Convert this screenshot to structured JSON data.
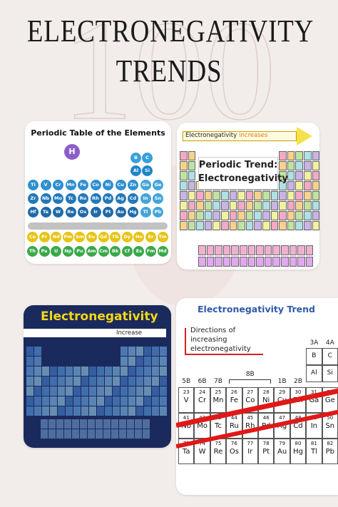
{
  "header": {
    "title_line1": "ELECTRONEGATIVITY",
    "title_line2": "TRENDS",
    "background_number": "100"
  },
  "cards": [
    {
      "title": "Periodic Table of the Elements",
      "key_symbol": "H",
      "right_block": [
        [
          "B",
          "C"
        ],
        [
          "Al",
          "Si"
        ]
      ],
      "rows": [
        [
          "Ti",
          "V",
          "Cr",
          "Mn",
          "Fe",
          "Co",
          "Ni",
          "Cu",
          "Zn",
          "Ga",
          "Ge"
        ],
        [
          "Zr",
          "Nb",
          "Mo",
          "Tc",
          "Ru",
          "Rh",
          "Pd",
          "Ag",
          "Cd",
          "In",
          "Sn"
        ],
        [
          "Hf",
          "Ta",
          "W",
          "Re",
          "Os",
          "Ir",
          "Pt",
          "Au",
          "Hg",
          "Tl",
          "Pb"
        ]
      ],
      "f_rows": [
        [
          "Ce",
          "Pr",
          "Nd",
          "Pm",
          "Sm",
          "Eu",
          "Gd",
          "Tb",
          "Dy",
          "Ho",
          "Er",
          "Tm"
        ],
        [
          "Th",
          "Pa",
          "U",
          "Np",
          "Pu",
          "Am",
          "Cm",
          "Bk",
          "Cf",
          "Es",
          "Fm",
          "Md"
        ]
      ]
    },
    {
      "arrow_label": "Electronegativity",
      "arrow_label_highlight": "increases",
      "title_line1": "Periodic Trend:",
      "title_line2": "Electronegativity"
    },
    {
      "title": "Electronegativity",
      "bar_label": "Increase"
    },
    {
      "title": "Electronegativity Trend",
      "note_lines": [
        "Directions of",
        "increasing",
        "electronegativity"
      ],
      "bracket_label": "8B",
      "groups": [
        "5B",
        "6B",
        "7B",
        "1B",
        "2B",
        "3A",
        "4A"
      ],
      "right_block": [
        [
          "B",
          "C"
        ],
        [
          "Al",
          "Si"
        ]
      ],
      "rows": [
        {
          "numbers": [
            "23",
            "24",
            "25",
            "26",
            "27",
            "28",
            "29",
            "30",
            "31",
            "32"
          ],
          "symbols": [
            "V",
            "Cr",
            "Mn",
            "Fe",
            "Co",
            "Ni",
            "Cu",
            "Zn",
            "Ga",
            "Ge"
          ]
        },
        {
          "numbers": [
            "41",
            "42",
            "43",
            "44",
            "45",
            "46",
            "47",
            "48",
            "49",
            "50"
          ],
          "symbols": [
            "Nb",
            "Mo",
            "Tc",
            "Ru",
            "Rh",
            "Pd",
            "Ag",
            "Cd",
            "In",
            "Sn"
          ]
        },
        {
          "numbers": [
            "73",
            "74",
            "75",
            "76",
            "77",
            "78",
            "79",
            "80",
            "81",
            "82"
          ],
          "symbols": [
            "Ta",
            "W",
            "Re",
            "Os",
            "Ir",
            "Pt",
            "Au",
            "Hg",
            "Tl",
            "Pb"
          ]
        }
      ]
    }
  ]
}
